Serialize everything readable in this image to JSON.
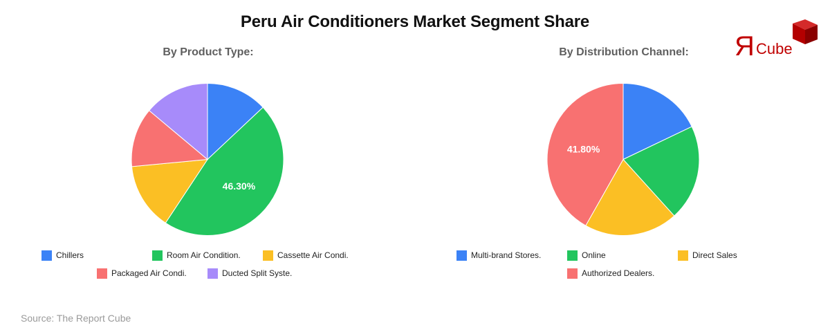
{
  "header": {
    "title": "Peru Air Conditioners Market Segment Share",
    "logo_text_r": "Я",
    "logo_text_cube": "Cube"
  },
  "footer": {
    "source": "Source: The Report Cube"
  },
  "colors": {
    "blue": "#3b82f6",
    "green": "#22c55e",
    "yellow": "#fbbf24",
    "red": "#f87171",
    "purple": "#a78bfa",
    "logo_red": "#c00000"
  },
  "chart_data": [
    {
      "type": "pie",
      "title": "By Product Type:",
      "categories": [
        "Chillers",
        "Room Air Condition.",
        "Cassette Air Condi.",
        "Packaged Air Condi.",
        "Ducted Split Syste."
      ],
      "values": [
        13.0,
        46.3,
        14.2,
        12.6,
        13.9
      ],
      "colors": [
        "#3b82f6",
        "#22c55e",
        "#fbbf24",
        "#f87171",
        "#a78bfa"
      ],
      "data_labels": [
        {
          "category": "Room Air Condition.",
          "label": "46.30%"
        }
      ],
      "legend_position": "bottom",
      "start_angle": 0,
      "direction": "clockwise"
    },
    {
      "type": "pie",
      "title": "By Distribution Channel:",
      "categories": [
        "Multi-brand Stores.",
        "Online",
        "Direct Sales",
        "Authorized Dealers."
      ],
      "values": [
        17.9,
        20.4,
        19.9,
        41.8
      ],
      "colors": [
        "#3b82f6",
        "#22c55e",
        "#fbbf24",
        "#f87171"
      ],
      "data_labels": [
        {
          "category": "Authorized Dealers.",
          "label": "41.80%"
        }
      ],
      "legend_position": "bottom",
      "start_angle": 0,
      "direction": "clockwise"
    }
  ]
}
